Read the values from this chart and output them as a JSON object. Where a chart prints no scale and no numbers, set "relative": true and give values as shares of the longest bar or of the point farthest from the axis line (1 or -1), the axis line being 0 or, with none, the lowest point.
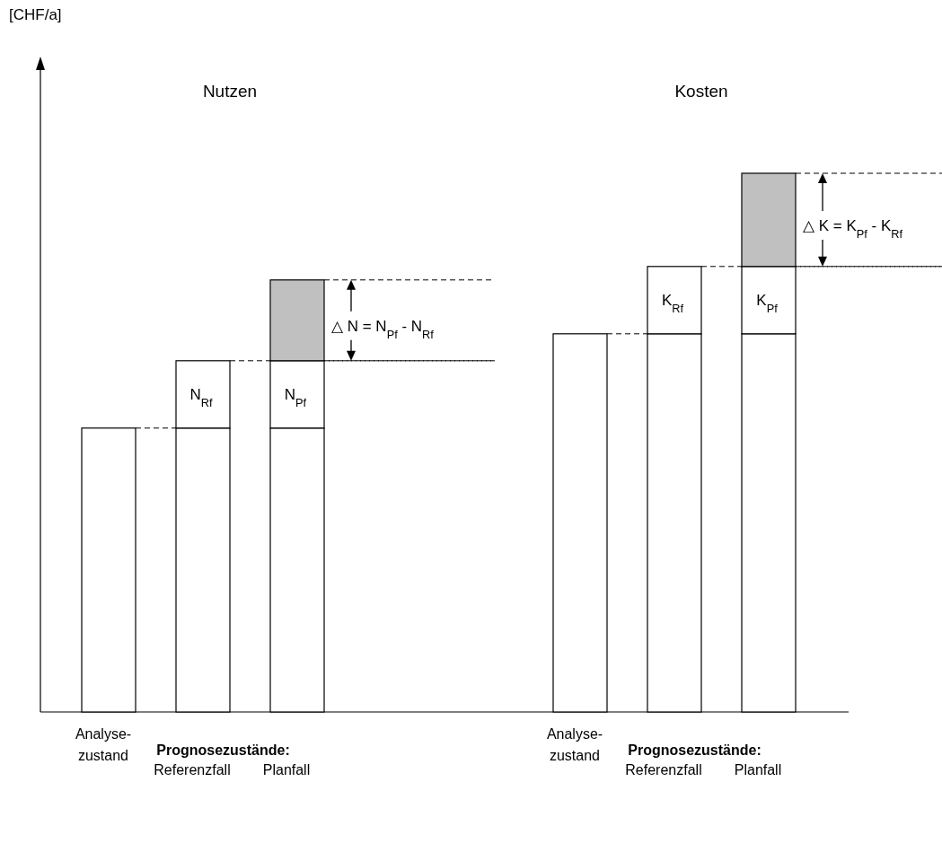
{
  "chart_data": {
    "type": "bar",
    "relative": true,
    "stacked": true,
    "categories": [
      "Analyse-\nzustand",
      "Referenzfall",
      "Planfall",
      null,
      null,
      "Analyse-\nzustand",
      "Referenzfall",
      "Planfall"
    ],
    "series": [
      {
        "color": "#ffffff",
        "values": [
          0.527,
          0.527,
          0.527,
          null,
          null,
          0.702,
          0.702,
          0.702
        ]
      },
      {
        "color": "#ffffff",
        "values": [
          null,
          0.125,
          0.125,
          null,
          null,
          null,
          0.125,
          0.125
        ]
      },
      {
        "color": "#c0c0c0",
        "values": [
          null,
          null,
          0.15,
          null,
          null,
          null,
          null,
          0.173
        ]
      }
    ],
    "annotations": [
      "Nutzen",
      "Kosten",
      "N$_{Rf}$",
      "N$_{Pf}$",
      "K$_{Rf}$",
      "K$_{Pf}$",
      "△ N = N$_{Pf}$ - N$_{Rf}$",
      "△ K = K$_{Pf}$ - K$_{Rf}$",
      "Prognosezustände:",
      "Prognosezustände:",
      "[CHF/a]"
    ]
  }
}
